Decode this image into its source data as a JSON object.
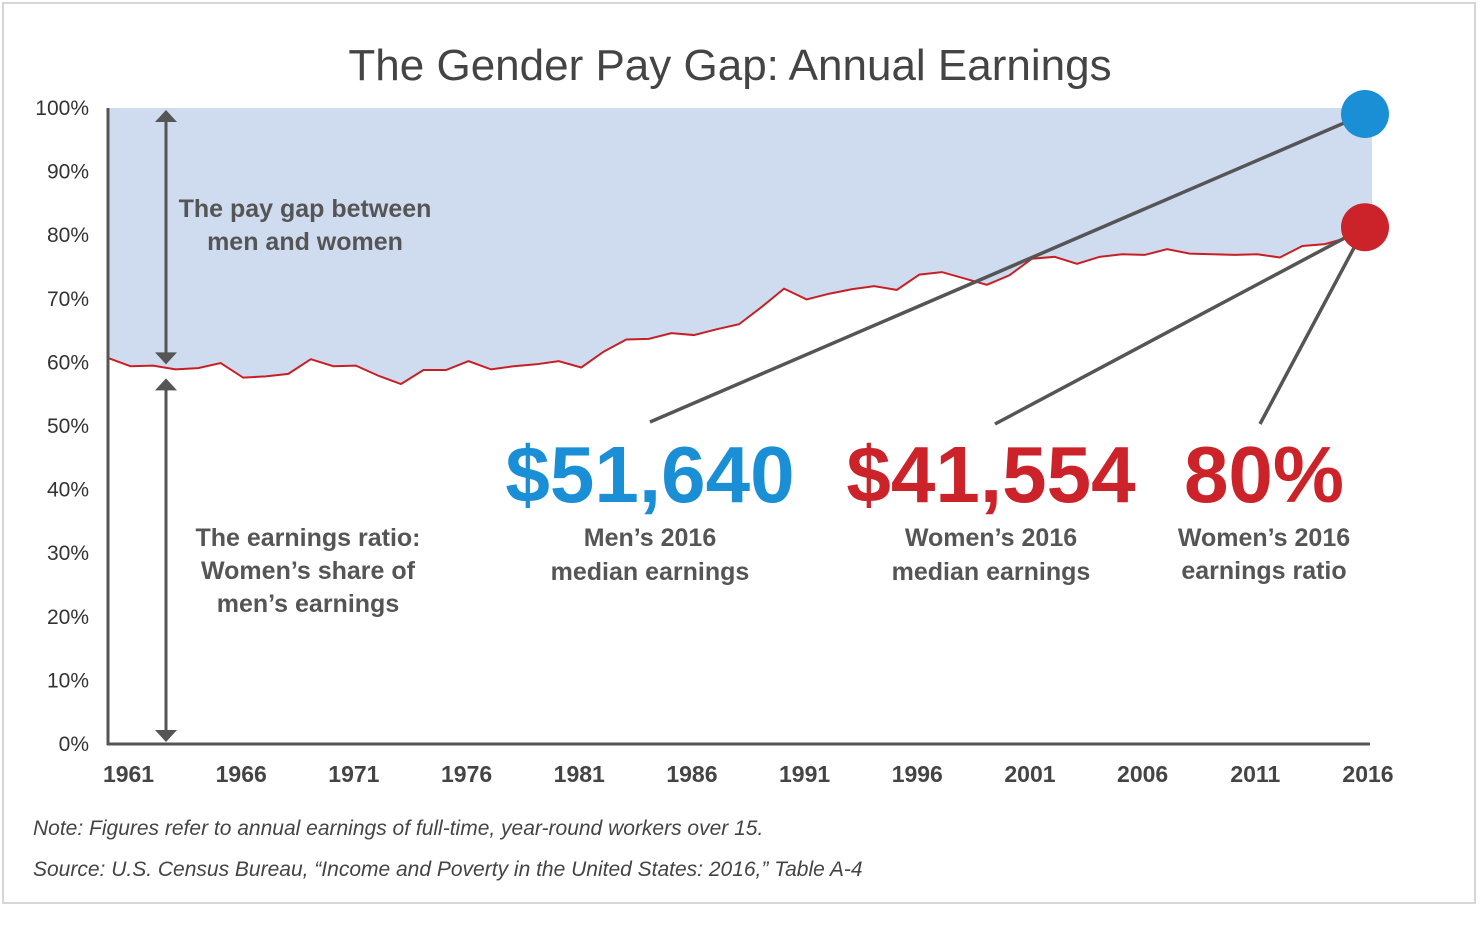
{
  "chart_data": {
    "type": "area",
    "title": "The Gender Pay Gap: Annual Earnings",
    "x": [
      1960,
      1961,
      1962,
      1963,
      1964,
      1965,
      1966,
      1967,
      1968,
      1969,
      1970,
      1971,
      1972,
      1973,
      1974,
      1975,
      1976,
      1977,
      1978,
      1979,
      1980,
      1981,
      1982,
      1983,
      1984,
      1985,
      1986,
      1987,
      1988,
      1989,
      1990,
      1991,
      1992,
      1993,
      1994,
      1995,
      1996,
      1997,
      1998,
      1999,
      2000,
      2001,
      2002,
      2003,
      2004,
      2005,
      2006,
      2007,
      2008,
      2009,
      2010,
      2011,
      2012,
      2013,
      2014,
      2015,
      2016
    ],
    "series": [
      {
        "values": [
          60.7,
          59.4,
          59.5,
          58.9,
          59.1,
          59.9,
          57.6,
          57.8,
          58.2,
          60.5,
          59.4,
          59.5,
          57.9,
          56.6,
          58.8,
          58.8,
          60.2,
          58.9,
          59.4,
          59.7,
          60.2,
          59.2,
          61.7,
          63.6,
          63.7,
          64.6,
          64.3,
          65.2,
          66.0,
          68.7,
          71.6,
          69.9,
          70.8,
          71.5,
          72.0,
          71.4,
          73.8,
          74.2,
          73.2,
          72.2,
          73.7,
          76.3,
          76.6,
          75.5,
          76.6,
          77.0,
          76.9,
          77.8,
          77.1,
          77.0,
          76.9,
          77.0,
          76.5,
          78.3,
          78.6,
          79.6,
          80.0
        ]
      }
    ],
    "xtick_labels": [
      "1961",
      "1966",
      "1971",
      "1976",
      "1981",
      "1986",
      "1991",
      "1996",
      "2001",
      "2006",
      "2011",
      "2016"
    ],
    "ytick_labels": [
      "0%",
      "10%",
      "20%",
      "30%",
      "40%",
      "50%",
      "60%",
      "70%",
      "80%",
      "90%",
      "100%"
    ],
    "ylim": [
      0,
      100
    ],
    "xlim": [
      1960,
      2016
    ],
    "grid": false,
    "colors": {
      "gap_fill": "#cfdcf0",
      "line": "#c62026",
      "men": "#1a8fd6",
      "women": "#cc2229",
      "text": "#555555"
    },
    "annotations": {
      "gap_label": [
        "The pay gap between",
        "men and women"
      ],
      "ratio_label": [
        "The earnings ratio:",
        "Women’s share of",
        "men’s earnings"
      ],
      "men_value": "$51,640",
      "men_label": [
        "Men’s 2016",
        "median earnings"
      ],
      "women_value": "$41,554",
      "women_label": [
        "Women’s 2016",
        "median earnings"
      ],
      "ratio_value": "80%",
      "ratio_value_label": [
        "Women’s 2016",
        "earnings ratio"
      ]
    },
    "note": "Note: Figures refer to annual earnings of full-time, year-round workers over 15.",
    "source": "Source: U.S. Census Bureau, “Income and Poverty in the United States: 2016,” Table A-4"
  }
}
